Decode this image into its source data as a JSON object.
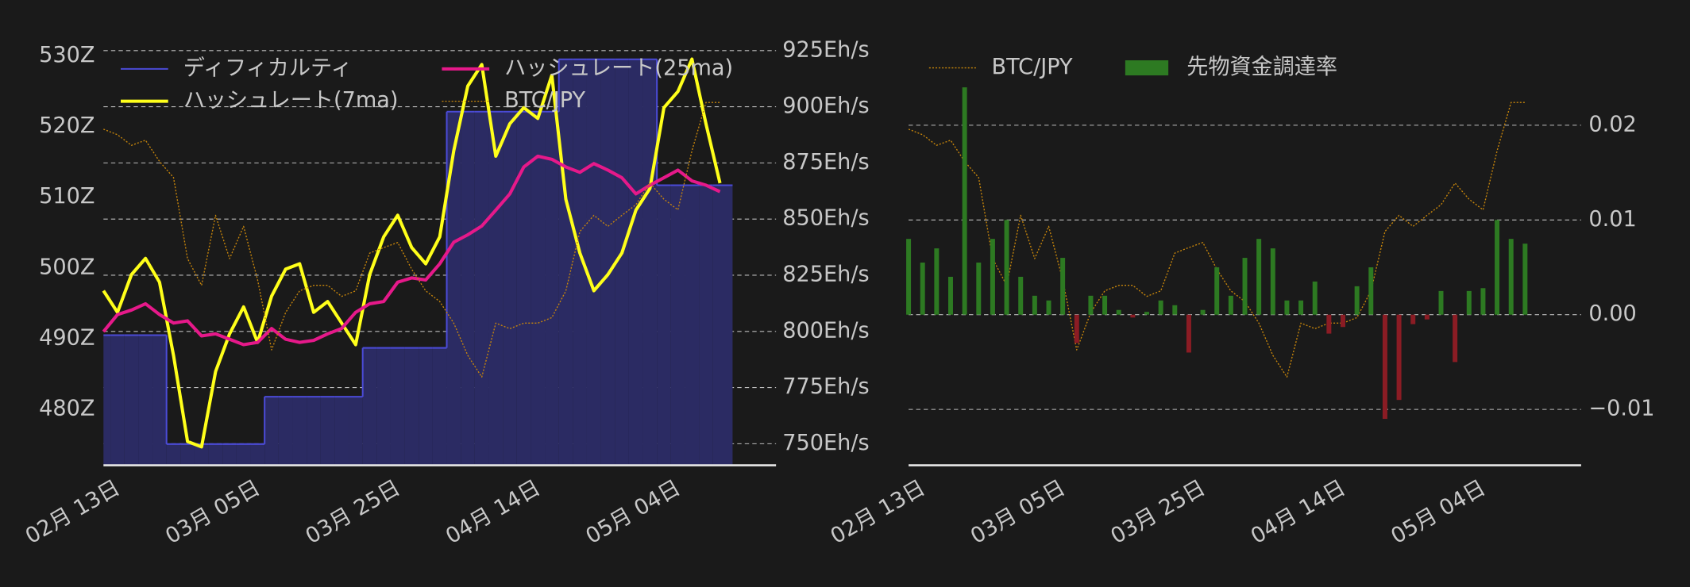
{
  "chart_data": [
    {
      "type": "combo",
      "grid": "y2",
      "x": [
        "02-13",
        "02-15",
        "02-17",
        "02-19",
        "02-21",
        "02-23",
        "02-25",
        "02-27",
        "03-01",
        "03-03",
        "03-05",
        "03-07",
        "03-09",
        "03-11",
        "03-13",
        "03-15",
        "03-17",
        "03-19",
        "03-21",
        "03-23",
        "03-25",
        "03-27",
        "03-29",
        "03-31",
        "04-02",
        "04-04",
        "04-06",
        "04-08",
        "04-10",
        "04-12",
        "04-14",
        "04-16",
        "04-18",
        "04-20",
        "04-22",
        "04-24",
        "04-26",
        "04-28",
        "04-30",
        "05-02",
        "05-04",
        "05-06",
        "05-08",
        "05-10",
        "05-12"
      ],
      "xticks": [
        {
          "value": "02-13",
          "label": "02月 13日"
        },
        {
          "value": "03-05",
          "label": "03月 05日"
        },
        {
          "value": "03-25",
          "label": "03月 25日"
        },
        {
          "value": "04-14",
          "label": "04月 14日"
        },
        {
          "value": "05-04",
          "label": "05月 04日"
        }
      ],
      "ylim": [
        472.1,
        532.1
      ],
      "yticks": [
        {
          "value": 480,
          "label": "480Z"
        },
        {
          "value": 490,
          "label": "490Z"
        },
        {
          "value": 500,
          "label": "500Z"
        },
        {
          "value": 510,
          "label": "510Z"
        },
        {
          "value": 520,
          "label": "520Z"
        },
        {
          "value": 530,
          "label": "530Z"
        }
      ],
      "y2lim": [
        740.4,
        929.3
      ],
      "y2ticks": [
        {
          "value": 750,
          "label": "750Eh/s"
        },
        {
          "value": 775,
          "label": "775Eh/s"
        },
        {
          "value": 800,
          "label": "800Eh/s"
        },
        {
          "value": 825,
          "label": "825Eh/s"
        },
        {
          "value": 850,
          "label": "850Eh/s"
        },
        {
          "value": 875,
          "label": "875Eh/s"
        },
        {
          "value": 900,
          "label": "900Eh/s"
        },
        {
          "value": 925,
          "label": "925Eh/s"
        }
      ],
      "y3lim": [
        3000000,
        4000000
      ],
      "series": [
        {
          "name": "ディフィカルティ",
          "style": "step-area",
          "axis": "y",
          "color": "#4b4bd6",
          "fill": "#2b2b63",
          "values": [
            490.5,
            490.5,
            490.5,
            490.5,
            490.5,
            475.1,
            475.1,
            475.1,
            475.1,
            475.1,
            475.1,
            475.1,
            481.8,
            481.8,
            481.8,
            481.8,
            481.8,
            481.8,
            481.8,
            488.7,
            488.7,
            488.7,
            488.7,
            488.7,
            488.7,
            522.1,
            522.1,
            522.1,
            522.1,
            522.1,
            522.1,
            522.1,
            522.1,
            529.5,
            529.5,
            529.5,
            529.5,
            529.5,
            529.5,
            529.5,
            511.7,
            511.7,
            511.7,
            511.7,
            511.7
          ]
        },
        {
          "name": "ハッシュレート(7ma)",
          "style": "line",
          "axis": "y2",
          "color": "#ffff1a",
          "values": [
            818.1,
            808.5,
            825.3,
            832.5,
            821.9,
            789.3,
            751.0,
            748.6,
            782.1,
            798.9,
            810.9,
            795.1,
            815.7,
            827.7,
            830.1,
            808.5,
            813.3,
            803.7,
            794.1,
            825.3,
            842.1,
            851.7,
            837.3,
            830.1,
            842.1,
            880.4,
            909.2,
            918.8,
            878.0,
            892.4,
            899.6,
            894.8,
            914.0,
            858.8,
            834.9,
            818.1,
            825.3,
            834.9,
            854.0,
            863.6,
            899.6,
            906.8,
            921.2,
            892.4,
            866.0
          ]
        },
        {
          "name": "ハッシュレート(25ma)",
          "style": "line",
          "axis": "y2",
          "color": "#e6198a",
          "values": [
            799.9,
            807.5,
            809.5,
            812.3,
            807.5,
            803.7,
            804.7,
            798.0,
            798.9,
            796.5,
            794.1,
            795.1,
            801.3,
            796.5,
            795.1,
            796.0,
            798.9,
            801.3,
            808.5,
            812.3,
            813.3,
            821.9,
            823.8,
            822.9,
            830.1,
            839.7,
            843.0,
            846.9,
            854.0,
            861.2,
            873.2,
            878.0,
            876.6,
            873.2,
            870.8,
            874.7,
            871.8,
            868.4,
            861.2,
            865.1,
            868.4,
            871.8,
            867.0,
            865.1,
            862.2
          ]
        },
        {
          "name": "BTC/JPY",
          "style": "dotted",
          "axis": "y3",
          "color": "#c8860b",
          "values": [
            3792000,
            3779000,
            3754000,
            3766000,
            3716000,
            3678000,
            3487000,
            3424000,
            3589000,
            3487000,
            3563000,
            3437000,
            3272000,
            3360000,
            3411000,
            3424000,
            3424000,
            3398000,
            3411000,
            3500000,
            3513000,
            3525000,
            3462000,
            3411000,
            3386000,
            3335000,
            3259000,
            3208000,
            3335000,
            3322000,
            3335000,
            3335000,
            3348000,
            3411000,
            3551000,
            3589000,
            3563000,
            3589000,
            3614000,
            3665000,
            3627000,
            3602000,
            3741000,
            3855000,
            3855000
          ]
        }
      ]
    },
    {
      "type": "combo",
      "grid": "y",
      "x": [
        "02-13",
        "02-15",
        "02-17",
        "02-19",
        "02-21",
        "02-23",
        "02-25",
        "02-27",
        "03-01",
        "03-03",
        "03-05",
        "03-07",
        "03-09",
        "03-11",
        "03-13",
        "03-15",
        "03-17",
        "03-19",
        "03-21",
        "03-23",
        "03-25",
        "03-27",
        "03-29",
        "03-31",
        "04-02",
        "04-04",
        "04-06",
        "04-08",
        "04-10",
        "04-12",
        "04-14",
        "04-16",
        "04-18",
        "04-20",
        "04-22",
        "04-24",
        "04-26",
        "04-28",
        "04-30",
        "05-02",
        "05-04",
        "05-06",
        "05-08",
        "05-10",
        "05-12"
      ],
      "xticks": [
        {
          "value": "02-13",
          "label": "02月 13日"
        },
        {
          "value": "03-05",
          "label": "03月 05日"
        },
        {
          "value": "03-25",
          "label": "03月 25日"
        },
        {
          "value": "04-14",
          "label": "04月 14日"
        },
        {
          "value": "05-04",
          "label": "05月 04日"
        }
      ],
      "ylim": [
        -0.0159,
        0.0289
      ],
      "yticks": [
        {
          "value": -0.01,
          "label": "−0.01"
        },
        {
          "value": 0,
          "label": "0.00"
        },
        0.01,
        0.02
      ],
      "y3lim": [
        3000000,
        4000000
      ],
      "series": [
        {
          "name": "BTC/JPY",
          "style": "dotted",
          "axis": "y3",
          "color": "#c8860b",
          "values": [
            3792000,
            3779000,
            3754000,
            3766000,
            3716000,
            3678000,
            3487000,
            3424000,
            3589000,
            3487000,
            3563000,
            3437000,
            3272000,
            3360000,
            3411000,
            3424000,
            3424000,
            3398000,
            3411000,
            3500000,
            3513000,
            3525000,
            3462000,
            3411000,
            3386000,
            3335000,
            3259000,
            3208000,
            3335000,
            3322000,
            3335000,
            3335000,
            3348000,
            3411000,
            3551000,
            3589000,
            3563000,
            3589000,
            3614000,
            3665000,
            3627000,
            3602000,
            3741000,
            3855000,
            3855000
          ]
        },
        {
          "name": "先物資金調達率",
          "style": "bar",
          "axis": "y",
          "color": "#2d7a22",
          "negative_color": "#8b1c24",
          "values": [
            0.008,
            0.0055,
            0.007,
            0.004,
            0.024,
            0.0055,
            0.008,
            0.01,
            0.004,
            0.002,
            0.0015,
            0.006,
            -0.003,
            0.002,
            0.002,
            0.0005,
            -0.0003,
            0.0003,
            0.0015,
            0.001,
            -0.004,
            0.0005,
            0.005,
            0.002,
            0.006,
            0.008,
            0.007,
            0.0015,
            0.0015,
            0.0035,
            -0.002,
            -0.0013,
            0.003,
            0.005,
            -0.011,
            -0.009,
            -0.001,
            -0.0005,
            0.0025,
            -0.005,
            0.0025,
            0.0028,
            0.01,
            0.008,
            0.0075
          ]
        }
      ]
    }
  ]
}
